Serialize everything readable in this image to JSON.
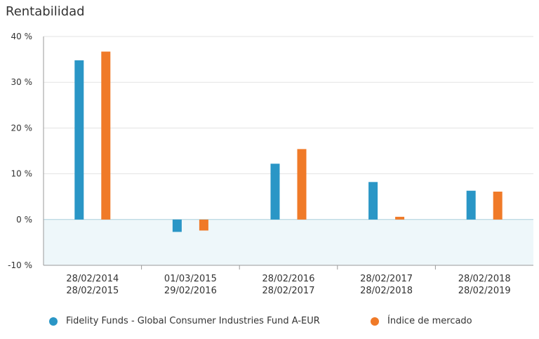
{
  "chart_data": {
    "type": "bar",
    "title": "Rentabilidad",
    "categories": [
      [
        "28/02/2014",
        "28/02/2015"
      ],
      [
        "01/03/2015",
        "29/02/2016"
      ],
      [
        "28/02/2016",
        "28/02/2017"
      ],
      [
        "28/02/2017",
        "28/02/2018"
      ],
      [
        "28/02/2018",
        "28/02/2019"
      ]
    ],
    "series": [
      {
        "name": "Fidelity Funds - Global Consumer Industries Fund A-EUR",
        "values": [
          34.8,
          -2.7,
          12.2,
          8.2,
          6.3
        ],
        "color": "#2a96c6"
      },
      {
        "name": "Índice de mercado",
        "values": [
          36.7,
          -2.4,
          15.4,
          0.6,
          6.1
        ],
        "color": "#f07a28"
      }
    ],
    "ylim": [
      -10,
      40
    ],
    "yticks": [
      40,
      30,
      20,
      10,
      0,
      -10
    ],
    "ytick_labels": [
      "40 %",
      "30 %",
      "20 %",
      "10 %",
      "0 %",
      "-10 %"
    ],
    "grid": true,
    "negative_region_color": "#eef7fa",
    "legend_position": "bottom"
  }
}
